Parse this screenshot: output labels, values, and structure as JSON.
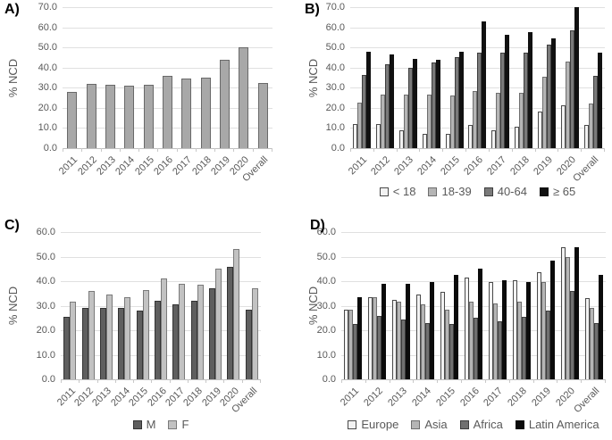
{
  "figure_name": "ncd-prevalence-four-panel-figure",
  "colors": {
    "text": "#595959",
    "gridline": "#e0e0e0",
    "axis_line": "#bfbfbf",
    "panel_letter": "#000000"
  },
  "chart_data": [
    {
      "type": "bar",
      "panel_label": "A)",
      "ylabel": "% NCD",
      "xlabel": "",
      "ylim": [
        0,
        70
      ],
      "ytick_labels": [
        "70.0",
        "60.0",
        "50.0",
        "40.0",
        "30.0",
        "20.0",
        "10.0",
        "0.0"
      ],
      "grid": true,
      "legend_position": "none",
      "categories": [
        "2011",
        "2012",
        "2013",
        "2014",
        "2015",
        "2016",
        "2017",
        "2018",
        "2019",
        "2020",
        "Overall"
      ],
      "series": [
        {
          "name": "",
          "color": "#a8a8a8",
          "border": "#696969",
          "values": [
            28,
            32,
            31.5,
            31,
            31.5,
            36,
            34.5,
            35,
            44,
            50,
            32.5
          ]
        }
      ]
    },
    {
      "type": "bar",
      "panel_label": "B)",
      "ylabel": "% NCD",
      "xlabel": "",
      "ylim": [
        0,
        70
      ],
      "ytick_labels": [
        "70.0",
        "60.0",
        "50.0",
        "40.0",
        "30.0",
        "20.0",
        "10.0",
        "0.0"
      ],
      "grid": true,
      "legend_position": "bottom",
      "categories": [
        "2011",
        "2012",
        "2013",
        "2014",
        "2015",
        "2016",
        "2017",
        "2018",
        "2019",
        "2020",
        "Overall"
      ],
      "series": [
        {
          "name": "< 18",
          "color": "#f2f2f2",
          "border": "#4a4a4a",
          "values": [
            12,
            12,
            9,
            7,
            7,
            11.5,
            9,
            10.5,
            18,
            21.5,
            11.5
          ]
        },
        {
          "name": "18-39",
          "color": "#b5b5b5",
          "border": "#6e6e6e",
          "values": [
            22.5,
            26.5,
            26.5,
            26.5,
            26,
            28.5,
            27.5,
            27.5,
            35.5,
            43,
            22
          ]
        },
        {
          "name": "40-64",
          "color": "#7a7a7a",
          "border": "#3d3d3d",
          "values": [
            36.5,
            41.5,
            40,
            42.5,
            45,
            47.5,
            47.5,
            47.5,
            51.5,
            58.5,
            36
          ]
        },
        {
          "name": "≥ 65",
          "color": "#111111",
          "border": "#111111",
          "values": [
            48,
            46.5,
            44.5,
            44,
            48,
            63,
            56.5,
            57.5,
            54.5,
            70,
            47.5
          ]
        }
      ]
    },
    {
      "type": "bar",
      "panel_label": "C)",
      "ylabel": "% NCD",
      "xlabel": "",
      "ylim": [
        0,
        60
      ],
      "ytick_labels": [
        "60.0",
        "50.0",
        "40.0",
        "30.0",
        "20.0",
        "10.0",
        "0.0"
      ],
      "grid": true,
      "legend_position": "bottom",
      "categories": [
        "2011",
        "2012",
        "2013",
        "2014",
        "2015",
        "2016",
        "2017",
        "2018",
        "2019",
        "2020",
        "Overall"
      ],
      "series": [
        {
          "name": "M",
          "color": "#5f5f5f",
          "border": "#333333",
          "values": [
            25.5,
            29,
            29,
            29,
            28,
            32,
            30.5,
            32,
            37,
            46,
            28.5
          ]
        },
        {
          "name": "F",
          "color": "#c2c2c2",
          "border": "#7a7a7a",
          "values": [
            31.5,
            36,
            34.5,
            33.5,
            36.5,
            41,
            39,
            38.5,
            45,
            53,
            37
          ]
        }
      ]
    },
    {
      "type": "bar",
      "panel_label": "D)",
      "ylabel": "% NCD",
      "xlabel": "",
      "ylim": [
        0,
        60
      ],
      "ytick_labels": [
        "60.0",
        "50.0",
        "40.0",
        "30.0",
        "20.0",
        "10.0",
        "0.0"
      ],
      "grid": true,
      "legend_position": "bottom",
      "categories": [
        "2011",
        "2012",
        "2013",
        "2014",
        "2015",
        "2016",
        "2017",
        "2018",
        "2019",
        "2020",
        "Overall"
      ],
      "series": [
        {
          "name": "Europe",
          "color": "#f2f2f2",
          "border": "#4a4a4a",
          "values": [
            28.5,
            33.5,
            32.5,
            34.5,
            35.5,
            41.5,
            39.5,
            40.5,
            43.5,
            54,
            33
          ]
        },
        {
          "name": "Asia",
          "color": "#b5b5b5",
          "border": "#6e6e6e",
          "values": [
            28.5,
            33.5,
            31.5,
            30.5,
            28.5,
            31.5,
            31,
            31.5,
            39.5,
            50,
            29
          ]
        },
        {
          "name": "Africa",
          "color": "#707070",
          "border": "#3d3d3d",
          "values": [
            22.5,
            26,
            24.5,
            23,
            22.5,
            25,
            23.5,
            25.5,
            28,
            36,
            23
          ]
        },
        {
          "name": "Latin America",
          "color": "#0b0b0b",
          "border": "#0b0b0b",
          "values": [
            33.5,
            39,
            39,
            39.5,
            42.5,
            45,
            40.5,
            39.5,
            48.5,
            54,
            42.5
          ]
        }
      ]
    }
  ]
}
